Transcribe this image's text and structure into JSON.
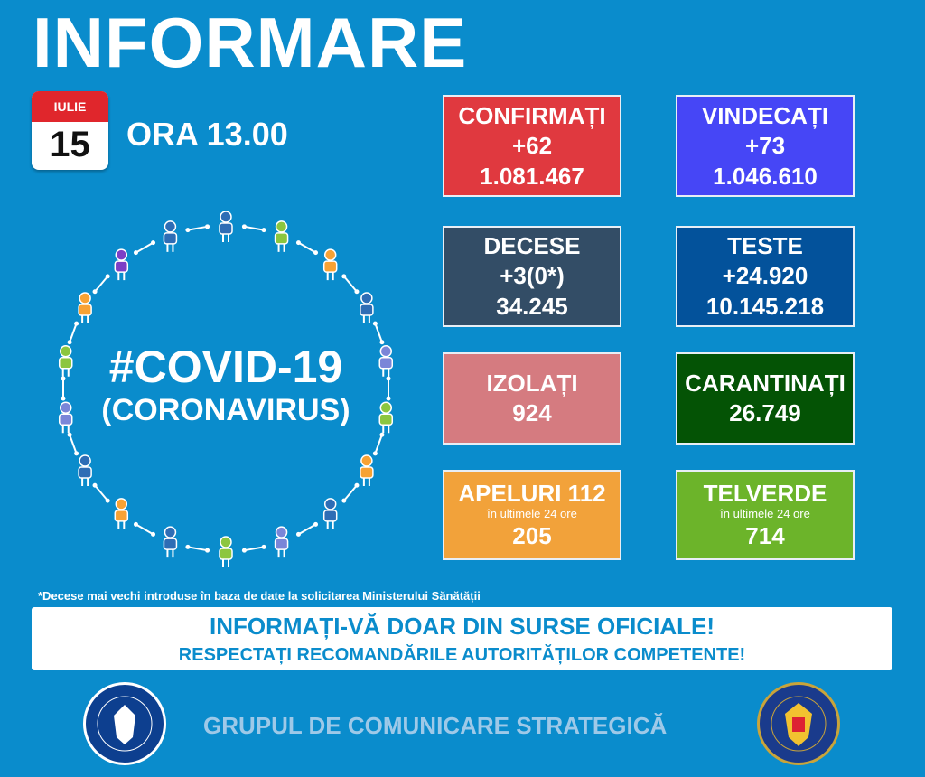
{
  "header": {
    "title": "INFORMARE",
    "month": "IULIE",
    "day": "15",
    "time": "ORA 13.00"
  },
  "center": {
    "line1": "#COVID-19",
    "line2": "(CORONAVIRUS)"
  },
  "stats": [
    {
      "label": "CONFIRMAȚI",
      "delta": "+62",
      "total": "1.081.467",
      "color": "#e0393f"
    },
    {
      "label": "VINDECAȚI",
      "delta": "+73",
      "total": "1.046.610",
      "color": "#4646f6"
    },
    {
      "label": "DECESE",
      "delta": "+3(0*)",
      "total": "34.245",
      "color": "#334d66"
    },
    {
      "label": "TESTE",
      "delta": "+24.920",
      "total": "10.145.218",
      "color": "#03529b"
    },
    {
      "label": "IZOLAȚI",
      "total": "924",
      "color": "#d57b80"
    },
    {
      "label": "CARANTINAȚI",
      "total": "26.749",
      "color": "#045305"
    },
    {
      "label": "APELURI 112",
      "sub": "în ultimele 24 ore",
      "total": "205",
      "color": "#f2a23a"
    },
    {
      "label": "TELVERDE",
      "sub": "în ultimele 24 ore",
      "total": "714",
      "color": "#6cb42a"
    }
  ],
  "footnote": "*Decese mai vechi introduse în baza de date la solicitarea Ministerului Sănătății",
  "banner": {
    "line1": "INFORMAȚI-VĂ DOAR DIN SURSE OFICIALE!",
    "line2": "RESPECTAȚI RECOMANDĂRILE AUTORITĂȚILOR COMPETENTE!"
  },
  "footer": {
    "text": "GRUPUL DE COMUNICARE STRATEGICĂ",
    "logo_left": "GUVERNUL ROMÂNIEI",
    "logo_right": "DEPARTAMENTUL PENTRU SITUAȚII DE URGENȚĂ M.A.I."
  },
  "figure_colors": [
    "#2e6db5",
    "#8cc63f",
    "#f7a234",
    "#2e6db5",
    "#7a86d8",
    "#8cc63f",
    "#f7a234",
    "#2e6db5",
    "#7a86d8",
    "#8cc63f",
    "#2e6db5",
    "#f7a234",
    "#2e6db5",
    "#7a86d8",
    "#8cc63f",
    "#f7a234",
    "#7c3fc6",
    "#2e6db5"
  ]
}
